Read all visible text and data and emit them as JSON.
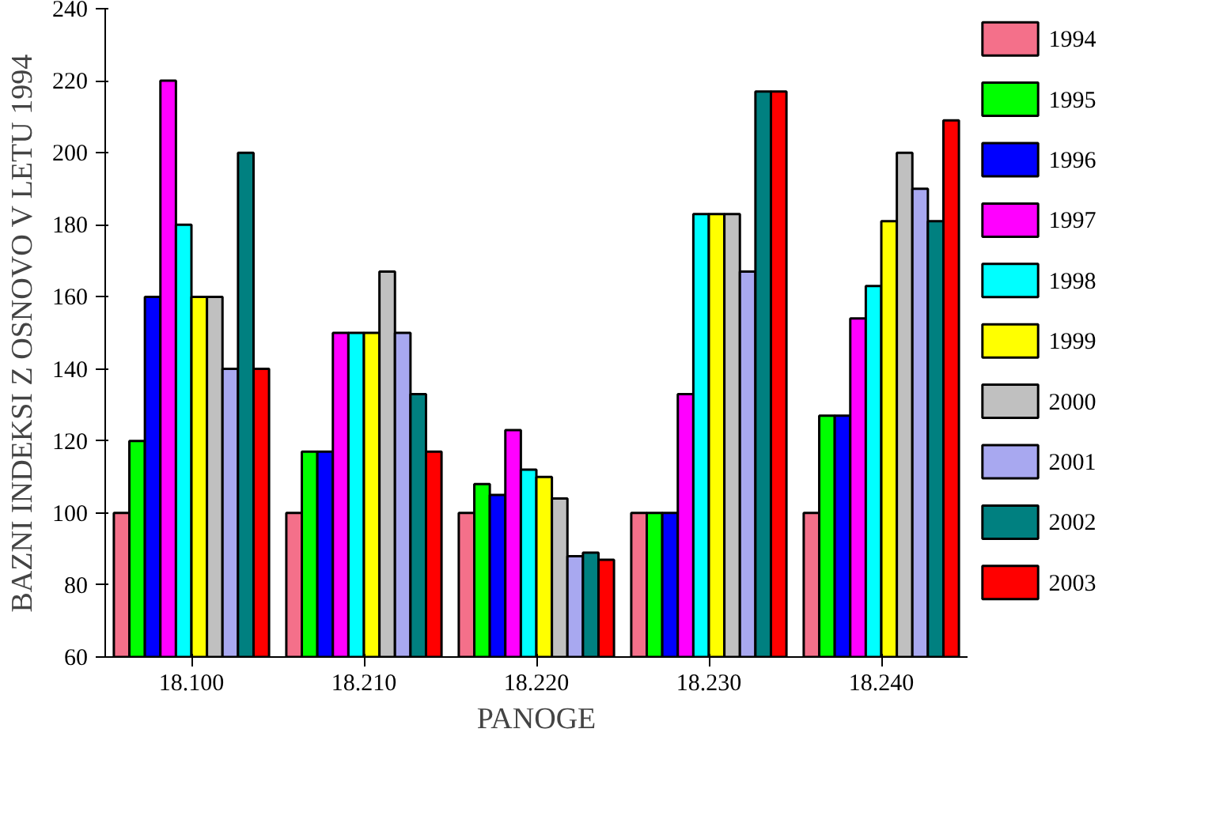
{
  "chart_data": {
    "type": "bar",
    "xlabel": "PANOGE",
    "ylabel": "BAZNI INDEKSI Z OSNOVO V LETU 1994",
    "categories": [
      "18.100",
      "18.210",
      "18.220",
      "18.230",
      "18.240"
    ],
    "ylim": [
      60,
      240
    ],
    "yticks": [
      60,
      80,
      100,
      120,
      140,
      160,
      180,
      200,
      220,
      240
    ],
    "grid": false,
    "legend": "right",
    "series": [
      {
        "name": "1994",
        "color": "#f4708a",
        "values": [
          100,
          100,
          100,
          100,
          100
        ]
      },
      {
        "name": "1995",
        "color": "#00ff00",
        "values": [
          120,
          117,
          108,
          100,
          127
        ]
      },
      {
        "name": "1996",
        "color": "#0000ff",
        "values": [
          160,
          117,
          105,
          100,
          127
        ]
      },
      {
        "name": "1997",
        "color": "#ff00ff",
        "values": [
          220,
          150,
          123,
          133,
          154
        ]
      },
      {
        "name": "1998",
        "color": "#00ffff",
        "values": [
          180,
          150,
          112,
          183,
          163
        ]
      },
      {
        "name": "1999",
        "color": "#ffff00",
        "values": [
          160,
          150,
          110,
          183,
          181
        ]
      },
      {
        "name": "2000",
        "color": "#c0c0c0",
        "values": [
          160,
          167,
          104,
          183,
          200
        ]
      },
      {
        "name": "2001",
        "color": "#a8a8f0",
        "values": [
          140,
          150,
          88,
          167,
          190
        ]
      },
      {
        "name": "2002",
        "color": "#008080",
        "values": [
          200,
          133,
          89,
          217,
          181
        ]
      },
      {
        "name": "2003",
        "color": "#ff0000",
        "values": [
          140,
          117,
          87,
          217,
          209
        ]
      }
    ]
  }
}
